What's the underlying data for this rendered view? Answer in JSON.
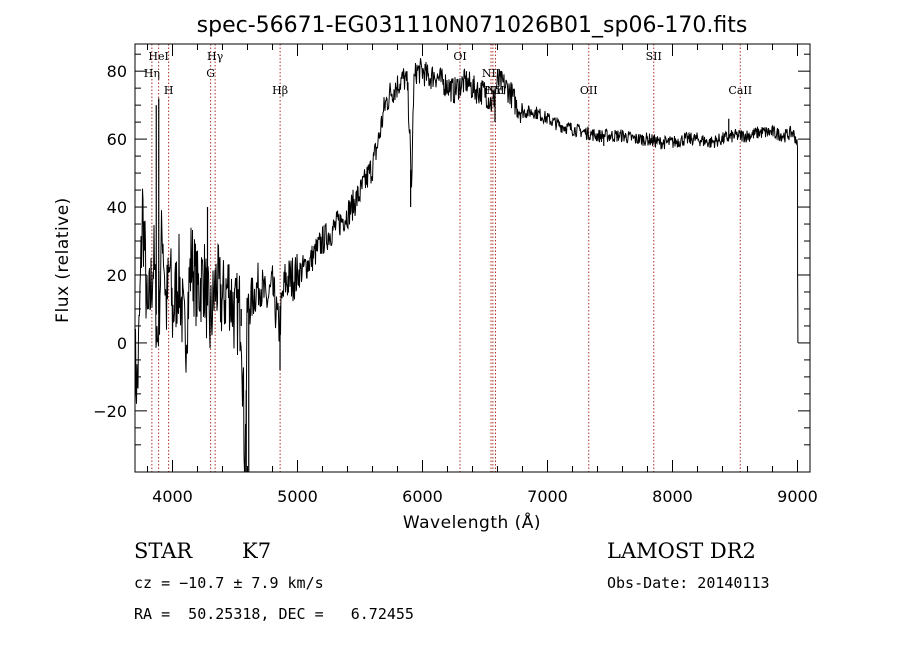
{
  "chart_data": {
    "type": "line",
    "title": "spec-56671-EG031110N071026B01_sp06-170.fits",
    "xlabel": "Wavelength (Å)",
    "ylabel": "Flux (relative)",
    "xlim": [
      3700,
      9100
    ],
    "ylim": [
      -38,
      88
    ],
    "x_ticks": [
      4000,
      5000,
      6000,
      7000,
      8000,
      9000
    ],
    "y_ticks": [
      -20,
      0,
      20,
      40,
      60,
      80
    ],
    "grid": false,
    "series_color": "#000000",
    "marker_color": "#b0302a",
    "anchors": [
      [
        3700,
        -5
      ],
      [
        3720,
        -14
      ],
      [
        3740,
        12
      ],
      [
        3760,
        40
      ],
      [
        3780,
        25
      ],
      [
        3800,
        5
      ],
      [
        3850,
        25
      ],
      [
        3880,
        0
      ],
      [
        3920,
        35
      ],
      [
        3950,
        10
      ],
      [
        3980,
        22
      ],
      [
        4000,
        8
      ],
      [
        4050,
        20
      ],
      [
        4100,
        0
      ],
      [
        4150,
        25
      ],
      [
        4200,
        15
      ],
      [
        4250,
        20
      ],
      [
        4300,
        5
      ],
      [
        4350,
        18
      ],
      [
        4400,
        12
      ],
      [
        4450,
        17
      ],
      [
        4500,
        8
      ],
      [
        4550,
        10
      ],
      [
        4580,
        -38
      ],
      [
        4600,
        10
      ],
      [
        4650,
        14
      ],
      [
        4700,
        18
      ],
      [
        4750,
        12
      ],
      [
        4800,
        16
      ],
      [
        4850,
        4
      ],
      [
        4900,
        18
      ],
      [
        5000,
        20
      ],
      [
        5100,
        24
      ],
      [
        5200,
        30
      ],
      [
        5300,
        34
      ],
      [
        5400,
        38
      ],
      [
        5500,
        44
      ],
      [
        5550,
        48
      ],
      [
        5600,
        52
      ],
      [
        5650,
        60
      ],
      [
        5700,
        70
      ],
      [
        5750,
        74
      ],
      [
        5800,
        76
      ],
      [
        5850,
        78
      ],
      [
        5880,
        76
      ],
      [
        5900,
        60
      ],
      [
        5910,
        42
      ],
      [
        5930,
        76
      ],
      [
        5950,
        80
      ],
      [
        6000,
        80
      ],
      [
        6050,
        78
      ],
      [
        6100,
        79
      ],
      [
        6150,
        77
      ],
      [
        6200,
        76
      ],
      [
        6250,
        74
      ],
      [
        6300,
        76
      ],
      [
        6350,
        77
      ],
      [
        6400,
        75
      ],
      [
        6450,
        74
      ],
      [
        6500,
        74
      ],
      [
        6560,
        70
      ],
      [
        6600,
        77
      ],
      [
        6650,
        76
      ],
      [
        6700,
        74
      ],
      [
        6750,
        70
      ],
      [
        6800,
        68
      ],
      [
        6900,
        68
      ],
      [
        7000,
        66
      ],
      [
        7100,
        64
      ],
      [
        7200,
        63
      ],
      [
        7300,
        62
      ],
      [
        7400,
        61
      ],
      [
        7500,
        61
      ],
      [
        7600,
        61
      ],
      [
        7700,
        60
      ],
      [
        7800,
        60
      ],
      [
        7900,
        59
      ],
      [
        8000,
        59
      ],
      [
        8100,
        60
      ],
      [
        8200,
        60
      ],
      [
        8300,
        59
      ],
      [
        8400,
        60
      ],
      [
        8500,
        61
      ],
      [
        8600,
        61
      ],
      [
        8700,
        62
      ],
      [
        8800,
        62
      ],
      [
        8900,
        61
      ],
      [
        8960,
        62
      ],
      [
        8990,
        60
      ],
      [
        9000,
        57
      ],
      [
        9001,
        20
      ],
      [
        9002,
        10
      ],
      [
        9003,
        0
      ]
    ],
    "spikes": [
      [
        3870,
        70
      ],
      [
        3890,
        72
      ],
      [
        4280,
        40
      ],
      [
        4550,
        5
      ],
      [
        4590,
        -38
      ],
      [
        4610,
        -38
      ],
      [
        4860,
        -8
      ],
      [
        5905,
        40
      ],
      [
        5915,
        50
      ],
      [
        6580,
        65
      ],
      [
        7450,
        58
      ],
      [
        8450,
        66
      ]
    ],
    "lines": [
      {
        "label": "HeI",
        "wavelength": 3889,
        "row": 0
      },
      {
        "label": "Hη",
        "wavelength": 3835,
        "row": 1
      },
      {
        "label": "H",
        "wavelength": 3969,
        "row": 2
      },
      {
        "label": "Hγ",
        "wavelength": 4341,
        "row": 0
      },
      {
        "label": "G",
        "wavelength": 4305,
        "row": 1
      },
      {
        "label": "Hβ",
        "wavelength": 4861,
        "row": 2
      },
      {
        "label": "OI",
        "wavelength": 6300,
        "row": 0
      },
      {
        "label": "NII",
        "wavelength": 6548,
        "row": 1
      },
      {
        "label": "Hα",
        "wavelength": 6563,
        "row": 2
      },
      {
        "label": "NII",
        "wavelength": 6584,
        "row": 2
      },
      {
        "label": "OII",
        "wavelength": 7330,
        "row": 2
      },
      {
        "label": "SII",
        "wavelength": 7850,
        "row": 0
      },
      {
        "label": "CaII",
        "wavelength": 8542,
        "row": 2
      }
    ]
  },
  "info": {
    "object_class": "STAR",
    "subclass": "K7",
    "survey": "LAMOST DR2",
    "cz": "cz = −10.7 ± 7.9 km/s",
    "obs_date": "Obs-Date: 20140113",
    "coords": "RA =  50.25318, DEC =   6.72455"
  }
}
